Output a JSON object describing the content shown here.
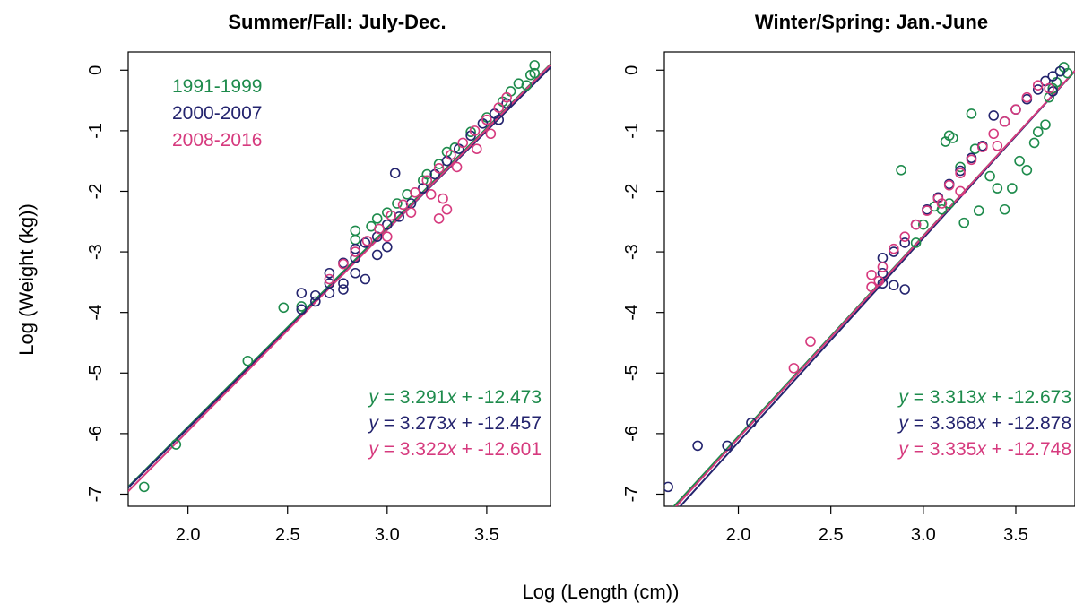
{
  "xlabel": "Log (Length (cm))",
  "ylabel": "Log (Weight (kg))",
  "colors": {
    "1991-1999": "#1e8b4c",
    "2000-2007": "#24246e",
    "2008-2016": "#d63a7e"
  },
  "chart_data": [
    {
      "type": "scatter",
      "title": "Summer/Fall: July-Dec.",
      "xlim": [
        1.7,
        3.82
      ],
      "ylim": [
        -7.2,
        0.3
      ],
      "xticks": [
        "2.0",
        "2.5",
        "3.0",
        "3.5"
      ],
      "yticks": [
        "0",
        "-1",
        "-2",
        "-3",
        "-4",
        "-5",
        "-6",
        "-7"
      ],
      "legend": [
        "1991-1999",
        "2000-2007",
        "2008-2016"
      ],
      "legend_position": "top-left",
      "fits": [
        {
          "series": "1991-1999",
          "slope": 3.291,
          "intercept": -12.473,
          "eq_y": "y",
          "eq_rest": " = 3.291",
          "eq_x": "x",
          "eq_tail": " + -12.473"
        },
        {
          "series": "2000-2007",
          "slope": 3.273,
          "intercept": -12.457,
          "eq_y": "y",
          "eq_rest": " = 3.273",
          "eq_x": "x",
          "eq_tail": " + -12.457"
        },
        {
          "series": "2008-2016",
          "slope": 3.322,
          "intercept": -12.601,
          "eq_y": "y",
          "eq_rest": " = 3.322",
          "eq_x": "x",
          "eq_tail": " + -12.601"
        }
      ],
      "series": [
        {
          "name": "1991-1999",
          "points": [
            [
              1.78,
              -6.88
            ],
            [
              1.94,
              -6.18
            ],
            [
              2.3,
              -4.8
            ],
            [
              2.48,
              -3.92
            ],
            [
              2.57,
              -3.9
            ],
            [
              2.84,
              -2.65
            ],
            [
              2.84,
              -2.8
            ],
            [
              2.92,
              -2.58
            ],
            [
              3.0,
              -2.35
            ],
            [
              3.1,
              -2.05
            ],
            [
              3.18,
              -1.82
            ],
            [
              3.26,
              -1.55
            ],
            [
              3.34,
              -1.28
            ],
            [
              3.42,
              -1.02
            ],
            [
              3.5,
              -0.78
            ],
            [
              3.58,
              -0.52
            ],
            [
              3.62,
              -0.35
            ],
            [
              3.66,
              -0.22
            ],
            [
              3.7,
              -0.25
            ],
            [
              3.72,
              -0.08
            ],
            [
              3.74,
              0.08
            ],
            [
              3.74,
              -0.05
            ],
            [
              3.2,
              -1.72
            ],
            [
              3.3,
              -1.35
            ],
            [
              3.05,
              -2.2
            ],
            [
              2.95,
              -2.45
            ]
          ]
        },
        {
          "name": "2000-2007",
          "points": [
            [
              2.57,
              -3.68
            ],
            [
              2.57,
              -3.95
            ],
            [
              2.64,
              -3.72
            ],
            [
              2.64,
              -3.82
            ],
            [
              2.71,
              -3.35
            ],
            [
              2.71,
              -3.52
            ],
            [
              2.71,
              -3.68
            ],
            [
              2.78,
              -3.18
            ],
            [
              2.78,
              -3.52
            ],
            [
              2.78,
              -3.62
            ],
            [
              2.84,
              -2.95
            ],
            [
              2.84,
              -3.1
            ],
            [
              2.84,
              -3.35
            ],
            [
              2.89,
              -2.85
            ],
            [
              2.89,
              -3.45
            ],
            [
              2.95,
              -2.75
            ],
            [
              2.95,
              -3.05
            ],
            [
              3.0,
              -2.55
            ],
            [
              3.0,
              -2.92
            ],
            [
              3.04,
              -1.7
            ],
            [
              3.06,
              -2.42
            ],
            [
              3.12,
              -2.2
            ],
            [
              3.18,
              -1.95
            ],
            [
              3.24,
              -1.72
            ],
            [
              3.3,
              -1.5
            ],
            [
              3.36,
              -1.3
            ],
            [
              3.42,
              -1.08
            ],
            [
              3.48,
              -0.88
            ],
            [
              3.54,
              -0.72
            ],
            [
              3.56,
              -0.82
            ],
            [
              3.6,
              -0.55
            ]
          ]
        },
        {
          "name": "2008-2016",
          "points": [
            [
              2.71,
              -3.45
            ],
            [
              2.78,
              -3.2
            ],
            [
              2.84,
              -3.0
            ],
            [
              2.9,
              -2.82
            ],
            [
              2.96,
              -2.62
            ],
            [
              3.02,
              -2.4
            ],
            [
              3.08,
              -2.22
            ],
            [
              3.14,
              -2.02
            ],
            [
              3.2,
              -1.82
            ],
            [
              3.26,
              -1.62
            ],
            [
              3.32,
              -1.4
            ],
            [
              3.38,
              -1.2
            ],
            [
              3.44,
              -1.0
            ],
            [
              3.5,
              -0.82
            ],
            [
              3.56,
              -0.62
            ],
            [
              3.6,
              -0.45
            ],
            [
              3.28,
              -2.12
            ],
            [
              3.3,
              -2.3
            ],
            [
              3.26,
              -2.45
            ],
            [
              3.22,
              -2.05
            ],
            [
              3.12,
              -2.35
            ],
            [
              3.0,
              -2.75
            ],
            [
              3.35,
              -1.6
            ],
            [
              3.45,
              -1.3
            ],
            [
              3.52,
              -1.05
            ]
          ]
        }
      ]
    },
    {
      "type": "scatter",
      "title": "Winter/Spring: Jan.-June",
      "xlim": [
        1.6,
        3.82
      ],
      "ylim": [
        -7.2,
        0.3
      ],
      "xticks": [
        "2.0",
        "2.5",
        "3.0",
        "3.5"
      ],
      "yticks": [
        "0",
        "-1",
        "-2",
        "-3",
        "-4",
        "-5",
        "-6",
        "-7"
      ],
      "fits": [
        {
          "series": "1991-1999",
          "slope": 3.313,
          "intercept": -12.673,
          "eq_y": "y",
          "eq_rest": " = 3.313",
          "eq_x": "x",
          "eq_tail": " + -12.673"
        },
        {
          "series": "2000-2007",
          "slope": 3.368,
          "intercept": -12.878,
          "eq_y": "y",
          "eq_rest": " = 3.368",
          "eq_x": "x",
          "eq_tail": " + -12.878"
        },
        {
          "series": "2008-2016",
          "slope": 3.335,
          "intercept": -12.748,
          "eq_y": "y",
          "eq_rest": " = 3.335",
          "eq_x": "x",
          "eq_tail": " + -12.748"
        }
      ],
      "series": [
        {
          "name": "1991-1999",
          "points": [
            [
              2.88,
              -1.65
            ],
            [
              3.12,
              -1.18
            ],
            [
              3.14,
              -1.08
            ],
            [
              3.16,
              -1.12
            ],
            [
              3.26,
              -0.72
            ],
            [
              3.1,
              -2.3
            ],
            [
              3.14,
              -2.2
            ],
            [
              3.22,
              -2.52
            ],
            [
              3.3,
              -2.32
            ],
            [
              3.36,
              -1.75
            ],
            [
              3.4,
              -1.95
            ],
            [
              3.44,
              -2.3
            ],
            [
              3.48,
              -1.95
            ],
            [
              3.52,
              -1.5
            ],
            [
              3.56,
              -1.65
            ],
            [
              3.6,
              -1.2
            ],
            [
              3.62,
              -1.02
            ],
            [
              3.66,
              -0.9
            ],
            [
              3.68,
              -0.45
            ],
            [
              3.7,
              -0.3
            ],
            [
              3.72,
              -0.2
            ],
            [
              3.74,
              -0.02
            ],
            [
              3.76,
              0.05
            ],
            [
              3.78,
              -0.05
            ],
            [
              3.0,
              -2.55
            ],
            [
              3.06,
              -2.25
            ],
            [
              3.2,
              -1.6
            ],
            [
              3.28,
              -1.3
            ],
            [
              2.96,
              -2.85
            ]
          ]
        },
        {
          "name": "2000-2007",
          "points": [
            [
              1.62,
              -6.88
            ],
            [
              1.78,
              -6.2
            ],
            [
              1.94,
              -6.2
            ],
            [
              2.07,
              -5.82
            ],
            [
              2.78,
              -3.1
            ],
            [
              2.78,
              -3.35
            ],
            [
              2.78,
              -3.52
            ],
            [
              2.84,
              -3.0
            ],
            [
              2.84,
              -3.55
            ],
            [
              2.9,
              -3.62
            ],
            [
              2.9,
              -2.85
            ],
            [
              2.96,
              -2.55
            ],
            [
              3.02,
              -2.3
            ],
            [
              3.08,
              -2.1
            ],
            [
              3.14,
              -1.88
            ],
            [
              3.2,
              -1.66
            ],
            [
              3.26,
              -1.45
            ],
            [
              3.32,
              -1.25
            ],
            [
              3.38,
              -0.75
            ],
            [
              3.44,
              -0.85
            ],
            [
              3.5,
              -0.65
            ],
            [
              3.56,
              -0.48
            ],
            [
              3.62,
              -0.32
            ],
            [
              3.66,
              -0.18
            ],
            [
              3.7,
              -0.1
            ],
            [
              3.74,
              -0.02
            ],
            [
              3.7,
              -0.35
            ]
          ]
        },
        {
          "name": "2008-2016",
          "points": [
            [
              2.3,
              -4.92
            ],
            [
              2.39,
              -4.48
            ],
            [
              2.72,
              -3.38
            ],
            [
              2.72,
              -3.58
            ],
            [
              2.76,
              -3.48
            ],
            [
              2.78,
              -3.25
            ],
            [
              2.84,
              -2.95
            ],
            [
              2.9,
              -2.75
            ],
            [
              2.96,
              -2.55
            ],
            [
              3.02,
              -2.32
            ],
            [
              3.08,
              -2.12
            ],
            [
              3.14,
              -1.9
            ],
            [
              3.2,
              -1.7
            ],
            [
              3.26,
              -1.48
            ],
            [
              3.32,
              -1.27
            ],
            [
              3.38,
              -1.05
            ],
            [
              3.44,
              -0.85
            ],
            [
              3.5,
              -0.65
            ],
            [
              3.56,
              -0.45
            ],
            [
              3.62,
              -0.25
            ],
            [
              3.68,
              -0.3
            ],
            [
              3.2,
              -2.0
            ],
            [
              3.1,
              -2.2
            ],
            [
              3.4,
              -1.25
            ]
          ]
        }
      ]
    }
  ]
}
